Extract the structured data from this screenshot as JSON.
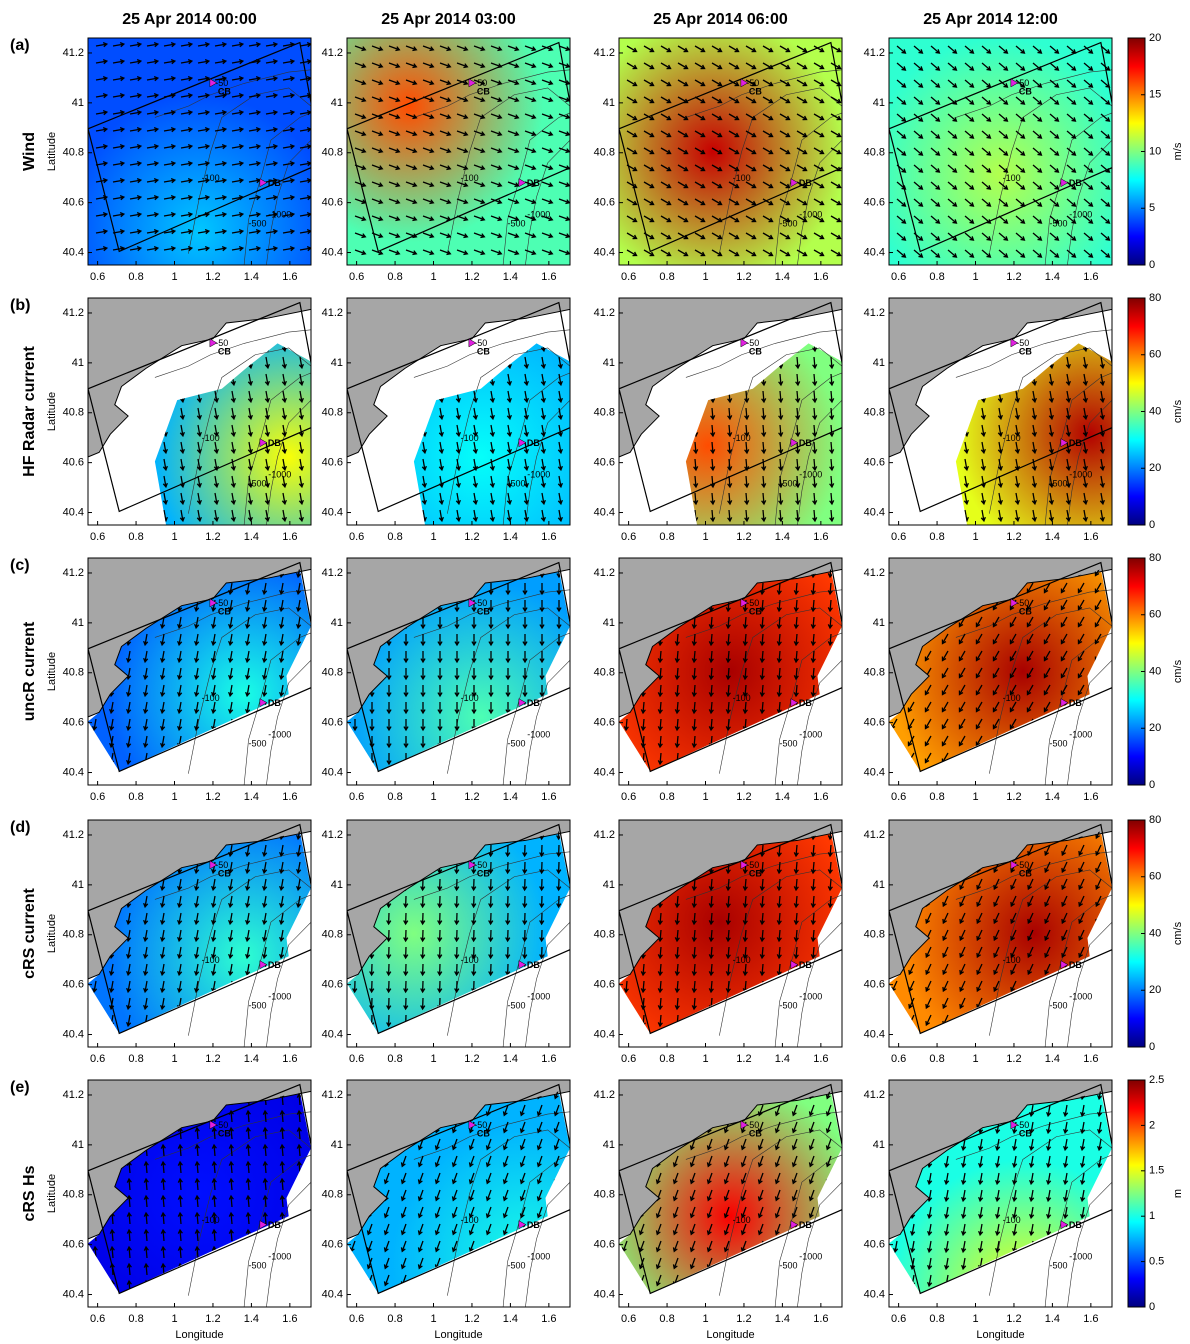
{
  "columns": [
    "25 Apr 2014 00:00",
    "25 Apr 2014 03:00",
    "25 Apr 2014 06:00",
    "25 Apr 2014 12:00"
  ],
  "rows": [
    {
      "label": "(a)",
      "name": "Wind",
      "unit": "m/s",
      "clim": [
        0,
        20
      ],
      "cticks": [
        0,
        5,
        10,
        15,
        20
      ]
    },
    {
      "label": "(b)",
      "name": "HF Radar current",
      "unit": "cm/s",
      "clim": [
        0,
        80
      ],
      "cticks": [
        0,
        20,
        40,
        60,
        80
      ]
    },
    {
      "label": "(c)",
      "name": "uncR current",
      "unit": "cm/s",
      "clim": [
        0,
        80
      ],
      "cticks": [
        0,
        20,
        40,
        60,
        80
      ]
    },
    {
      "label": "(d)",
      "name": "cRS current",
      "unit": "cm/s",
      "clim": [
        0,
        80
      ],
      "cticks": [
        0,
        20,
        40,
        60,
        80
      ]
    },
    {
      "label": "(e)",
      "name": "cRS Hs",
      "unit": "m",
      "clim": [
        0,
        2.5
      ],
      "cticks": [
        0,
        0.5,
        1,
        1.5,
        2,
        2.5
      ]
    }
  ],
  "axes": {
    "xlim": [
      0.55,
      1.71
    ],
    "xticks": [
      0.6,
      0.8,
      1,
      1.2,
      1.4,
      1.6
    ],
    "ylim": [
      40.35,
      41.26
    ],
    "yticks": [
      40.4,
      40.6,
      40.8,
      41,
      41.2
    ],
    "xlabel": "Longitude",
    "ylabel": "Latitude"
  },
  "stations": [
    {
      "name": "CB",
      "lon": 1.21,
      "lat": 41.08
    },
    {
      "name": "DB",
      "lon": 1.47,
      "lat": 40.68
    }
  ],
  "contour_labels": [
    "-50",
    "-100",
    "-500",
    "-1000"
  ]
}
